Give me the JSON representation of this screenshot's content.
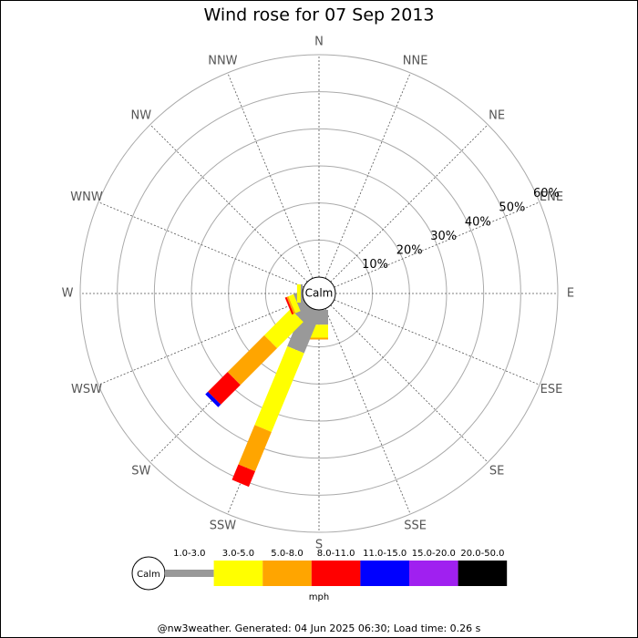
{
  "chart_data": {
    "type": "windrose",
    "title": "Wind rose for 07 Sep 2013",
    "calm_label": "Calm",
    "directions": [
      "N",
      "NNE",
      "NE",
      "ENE",
      "E",
      "ESE",
      "SE",
      "SSE",
      "S",
      "SSW",
      "SW",
      "WSW",
      "W",
      "WNW",
      "NW",
      "NNW"
    ],
    "rlim": [
      0,
      60
    ],
    "rticks": [
      {
        "value": 10,
        "label": "10%"
      },
      {
        "value": 20,
        "label": "20%"
      },
      {
        "value": 30,
        "label": "30%"
      },
      {
        "value": 40,
        "label": "40%"
      },
      {
        "value": 50,
        "label": "50%"
      },
      {
        "value": 60,
        "label": "60%"
      }
    ],
    "series": [
      {
        "name": "1.0-3.0",
        "color": "#999999",
        "values": [
          0,
          0,
          0,
          0,
          0,
          0,
          0,
          0,
          4,
          12,
          4,
          2,
          0.5,
          0,
          0,
          0
        ]
      },
      {
        "name": "3.0-5.0",
        "color": "#ffff00",
        "values": [
          0,
          0,
          0,
          0,
          0,
          0,
          0,
          0,
          3.5,
          23,
          10,
          1.5,
          1,
          0,
          0,
          0
        ]
      },
      {
        "name": "5.0-8.0",
        "color": "#ffa500",
        "values": [
          0,
          0,
          0,
          0,
          0,
          0,
          0,
          0,
          0.5,
          11.5,
          14,
          0.5,
          0,
          0,
          0,
          0
        ]
      },
      {
        "name": "8.0-11.0",
        "color": "#ff0000",
        "values": [
          0,
          0,
          0,
          0,
          0,
          0,
          0,
          0,
          0,
          4.5,
          7.5,
          0.5,
          0,
          0,
          0,
          0
        ]
      },
      {
        "name": "11.0-15.0",
        "color": "#0000ff",
        "values": [
          0,
          0,
          0,
          0,
          0,
          0,
          0,
          0,
          0,
          0,
          1,
          0,
          0,
          0,
          0,
          0
        ]
      },
      {
        "name": "15.0-20.0",
        "color": "#a020f0",
        "values": [
          0,
          0,
          0,
          0,
          0,
          0,
          0,
          0,
          0,
          0,
          0,
          0,
          0,
          0,
          0,
          0
        ]
      },
      {
        "name": "20.0-50.0",
        "color": "#000000",
        "values": [
          0,
          0,
          0,
          0,
          0,
          0,
          0,
          0,
          0,
          0,
          0,
          0,
          0,
          0,
          0,
          0
        ]
      }
    ],
    "units": "mph",
    "footer": "@nw3weather. Generated: 04 Jun 2025 06:30; Load time: 0.26 s"
  }
}
